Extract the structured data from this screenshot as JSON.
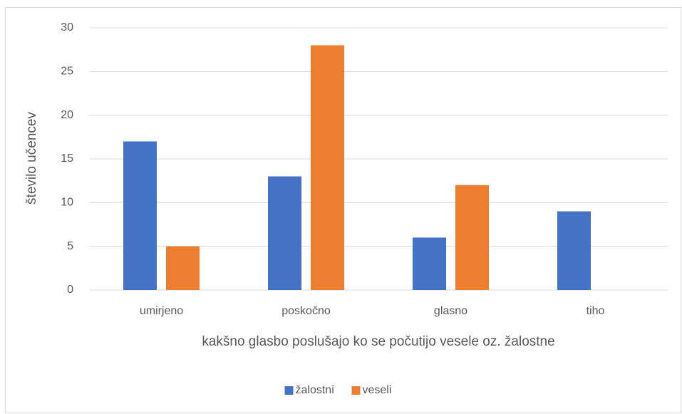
{
  "chart_data": {
    "type": "bar",
    "categories": [
      "umirjeno",
      "poskočno",
      "glasno",
      "tiho"
    ],
    "series": [
      {
        "name": "žalostni",
        "color": "#4472c4",
        "values": [
          17,
          13,
          6,
          9
        ]
      },
      {
        "name": "veseli",
        "color": "#ed7d31",
        "values": [
          5,
          28,
          12,
          0
        ]
      }
    ],
    "x_label": "kakšno glasbo poslušajo ko se počutijo vesele oz. žalostne",
    "y_label": "število učencev",
    "ylim": [
      0,
      30
    ],
    "yticks": [
      0,
      5,
      10,
      15,
      20,
      25,
      30
    ],
    "grid": true,
    "legend": "bottom"
  }
}
